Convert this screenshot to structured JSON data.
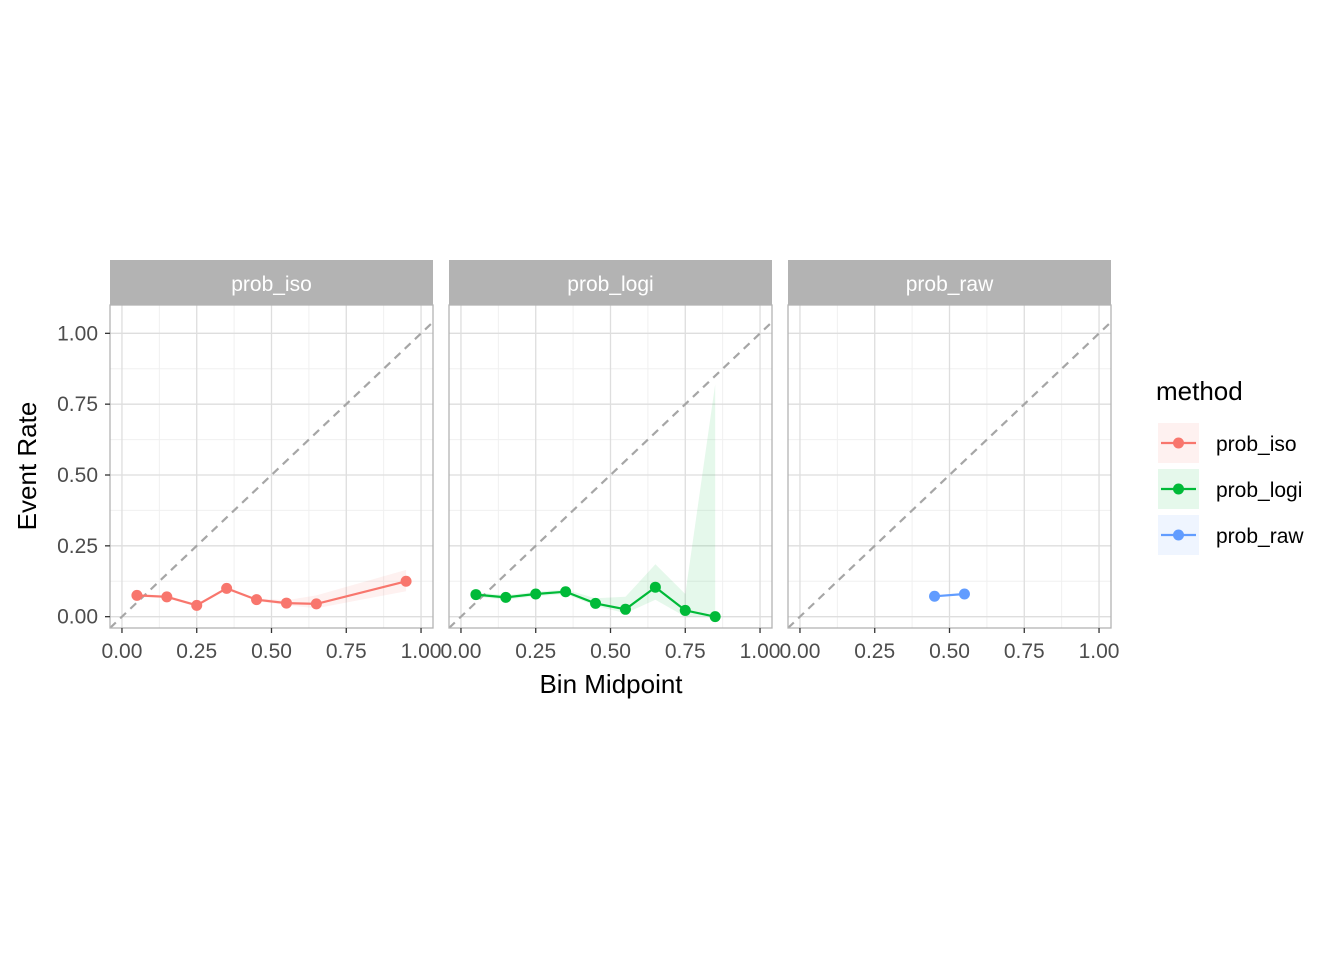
{
  "chart_data": {
    "type": "line",
    "facet_by": "method",
    "panels": [
      "prob_iso",
      "prob_logi",
      "prob_raw"
    ],
    "xlabel": "Bin Midpoint",
    "ylabel": "Event Rate",
    "xlim": [
      -0.04,
      1.04
    ],
    "ylim": [
      -0.04,
      1.1
    ],
    "x_ticks": [
      0.0,
      0.25,
      0.5,
      0.75,
      1.0
    ],
    "x_tick_labels": [
      "0.00",
      "0.25",
      "0.50",
      "0.75",
      "1.00"
    ],
    "y_ticks": [
      0.0,
      0.25,
      0.5,
      0.75,
      1.0
    ],
    "y_tick_labels": [
      "0.00",
      "0.25",
      "0.50",
      "0.75",
      "1.00"
    ],
    "grid": true,
    "reference_line": "y = x (dashed grey)",
    "legend": {
      "title": "method",
      "position": "right",
      "entries": [
        "prob_iso",
        "prob_logi",
        "prob_raw"
      ]
    },
    "series": [
      {
        "name": "prob_iso",
        "color": "#F8766D",
        "x": [
          0.05,
          0.15,
          0.25,
          0.35,
          0.45,
          0.55,
          0.65,
          0.95
        ],
        "y": [
          0.075,
          0.07,
          0.04,
          0.1,
          0.06,
          0.048,
          0.045,
          0.125
        ],
        "lower": [
          0.07,
          0.065,
          0.035,
          0.095,
          0.055,
          0.04,
          0.03,
          0.09
        ],
        "upper": [
          0.08,
          0.075,
          0.045,
          0.105,
          0.065,
          0.058,
          0.075,
          0.165
        ]
      },
      {
        "name": "prob_logi",
        "color": "#00BA38",
        "x": [
          0.05,
          0.15,
          0.25,
          0.35,
          0.45,
          0.55,
          0.65,
          0.75,
          0.85
        ],
        "y": [
          0.078,
          0.068,
          0.08,
          0.088,
          0.047,
          0.026,
          0.104,
          0.022,
          0.0
        ],
        "lower": [
          0.07,
          0.06,
          0.072,
          0.08,
          0.038,
          0.012,
          0.06,
          0.0,
          0.0
        ],
        "upper": [
          0.086,
          0.076,
          0.088,
          0.096,
          0.065,
          0.07,
          0.185,
          0.08,
          0.82
        ]
      },
      {
        "name": "prob_raw",
        "color": "#619CFF",
        "x": [
          0.45,
          0.55
        ],
        "y": [
          0.072,
          0.08
        ]
      }
    ]
  }
}
